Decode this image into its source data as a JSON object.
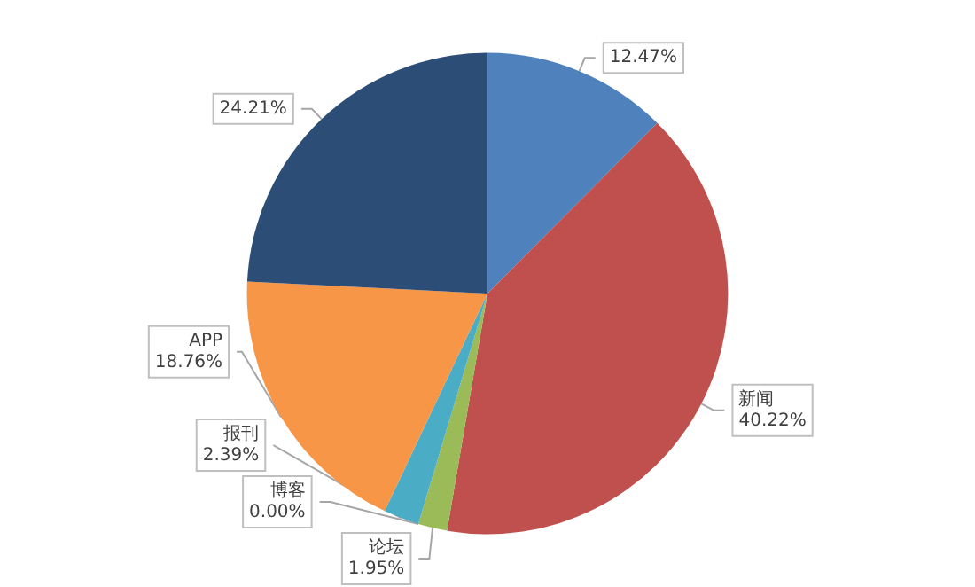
{
  "chart_data": {
    "type": "pie",
    "categories": [
      null,
      "新闻",
      "论坛",
      "博客",
      "报刊",
      "APP",
      null
    ],
    "values": [
      12.47,
      40.22,
      1.95,
      0.0,
      2.39,
      18.76,
      24.21
    ],
    "value_labels": [
      "12.47%",
      "40.22%",
      "1.95%",
      "0.00%",
      "2.39%",
      "18.76%",
      "24.21%"
    ],
    "colors": [
      "#4f81bd",
      "#c0504d",
      "#9bbb59",
      "#8064a2",
      "#4bacc6",
      "#f79646",
      "#2c4d75"
    ],
    "legend": false
  }
}
